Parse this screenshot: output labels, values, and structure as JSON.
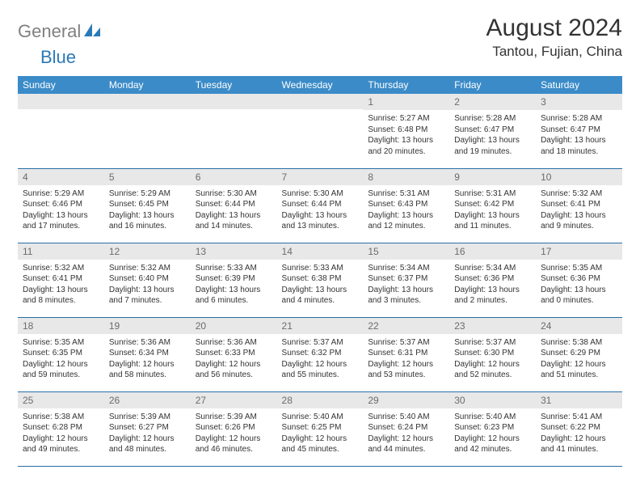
{
  "logo": {
    "grey": "General",
    "blue": "Blue"
  },
  "title": "August 2024",
  "location": "Tantou, Fujian, China",
  "colors": {
    "header_bg": "#3b8bc8",
    "header_text": "#ffffff",
    "daynum_bg": "#e8e8e8",
    "daynum_text": "#6b6b6b",
    "border": "#2a6fa5",
    "body_text": "#333333",
    "logo_grey": "#808080",
    "logo_blue": "#2a7ab8"
  },
  "day_labels": [
    "Sunday",
    "Monday",
    "Tuesday",
    "Wednesday",
    "Thursday",
    "Friday",
    "Saturday"
  ],
  "weeks": [
    [
      {
        "n": "",
        "sunrise": "",
        "sunset": "",
        "daylight": ""
      },
      {
        "n": "",
        "sunrise": "",
        "sunset": "",
        "daylight": ""
      },
      {
        "n": "",
        "sunrise": "",
        "sunset": "",
        "daylight": ""
      },
      {
        "n": "",
        "sunrise": "",
        "sunset": "",
        "daylight": ""
      },
      {
        "n": "1",
        "sunrise": "Sunrise: 5:27 AM",
        "sunset": "Sunset: 6:48 PM",
        "daylight": "Daylight: 13 hours and 20 minutes."
      },
      {
        "n": "2",
        "sunrise": "Sunrise: 5:28 AM",
        "sunset": "Sunset: 6:47 PM",
        "daylight": "Daylight: 13 hours and 19 minutes."
      },
      {
        "n": "3",
        "sunrise": "Sunrise: 5:28 AM",
        "sunset": "Sunset: 6:47 PM",
        "daylight": "Daylight: 13 hours and 18 minutes."
      }
    ],
    [
      {
        "n": "4",
        "sunrise": "Sunrise: 5:29 AM",
        "sunset": "Sunset: 6:46 PM",
        "daylight": "Daylight: 13 hours and 17 minutes."
      },
      {
        "n": "5",
        "sunrise": "Sunrise: 5:29 AM",
        "sunset": "Sunset: 6:45 PM",
        "daylight": "Daylight: 13 hours and 16 minutes."
      },
      {
        "n": "6",
        "sunrise": "Sunrise: 5:30 AM",
        "sunset": "Sunset: 6:44 PM",
        "daylight": "Daylight: 13 hours and 14 minutes."
      },
      {
        "n": "7",
        "sunrise": "Sunrise: 5:30 AM",
        "sunset": "Sunset: 6:44 PM",
        "daylight": "Daylight: 13 hours and 13 minutes."
      },
      {
        "n": "8",
        "sunrise": "Sunrise: 5:31 AM",
        "sunset": "Sunset: 6:43 PM",
        "daylight": "Daylight: 13 hours and 12 minutes."
      },
      {
        "n": "9",
        "sunrise": "Sunrise: 5:31 AM",
        "sunset": "Sunset: 6:42 PM",
        "daylight": "Daylight: 13 hours and 11 minutes."
      },
      {
        "n": "10",
        "sunrise": "Sunrise: 5:32 AM",
        "sunset": "Sunset: 6:41 PM",
        "daylight": "Daylight: 13 hours and 9 minutes."
      }
    ],
    [
      {
        "n": "11",
        "sunrise": "Sunrise: 5:32 AM",
        "sunset": "Sunset: 6:41 PM",
        "daylight": "Daylight: 13 hours and 8 minutes."
      },
      {
        "n": "12",
        "sunrise": "Sunrise: 5:32 AM",
        "sunset": "Sunset: 6:40 PM",
        "daylight": "Daylight: 13 hours and 7 minutes."
      },
      {
        "n": "13",
        "sunrise": "Sunrise: 5:33 AM",
        "sunset": "Sunset: 6:39 PM",
        "daylight": "Daylight: 13 hours and 6 minutes."
      },
      {
        "n": "14",
        "sunrise": "Sunrise: 5:33 AM",
        "sunset": "Sunset: 6:38 PM",
        "daylight": "Daylight: 13 hours and 4 minutes."
      },
      {
        "n": "15",
        "sunrise": "Sunrise: 5:34 AM",
        "sunset": "Sunset: 6:37 PM",
        "daylight": "Daylight: 13 hours and 3 minutes."
      },
      {
        "n": "16",
        "sunrise": "Sunrise: 5:34 AM",
        "sunset": "Sunset: 6:36 PM",
        "daylight": "Daylight: 13 hours and 2 minutes."
      },
      {
        "n": "17",
        "sunrise": "Sunrise: 5:35 AM",
        "sunset": "Sunset: 6:36 PM",
        "daylight": "Daylight: 13 hours and 0 minutes."
      }
    ],
    [
      {
        "n": "18",
        "sunrise": "Sunrise: 5:35 AM",
        "sunset": "Sunset: 6:35 PM",
        "daylight": "Daylight: 12 hours and 59 minutes."
      },
      {
        "n": "19",
        "sunrise": "Sunrise: 5:36 AM",
        "sunset": "Sunset: 6:34 PM",
        "daylight": "Daylight: 12 hours and 58 minutes."
      },
      {
        "n": "20",
        "sunrise": "Sunrise: 5:36 AM",
        "sunset": "Sunset: 6:33 PM",
        "daylight": "Daylight: 12 hours and 56 minutes."
      },
      {
        "n": "21",
        "sunrise": "Sunrise: 5:37 AM",
        "sunset": "Sunset: 6:32 PM",
        "daylight": "Daylight: 12 hours and 55 minutes."
      },
      {
        "n": "22",
        "sunrise": "Sunrise: 5:37 AM",
        "sunset": "Sunset: 6:31 PM",
        "daylight": "Daylight: 12 hours and 53 minutes."
      },
      {
        "n": "23",
        "sunrise": "Sunrise: 5:37 AM",
        "sunset": "Sunset: 6:30 PM",
        "daylight": "Daylight: 12 hours and 52 minutes."
      },
      {
        "n": "24",
        "sunrise": "Sunrise: 5:38 AM",
        "sunset": "Sunset: 6:29 PM",
        "daylight": "Daylight: 12 hours and 51 minutes."
      }
    ],
    [
      {
        "n": "25",
        "sunrise": "Sunrise: 5:38 AM",
        "sunset": "Sunset: 6:28 PM",
        "daylight": "Daylight: 12 hours and 49 minutes."
      },
      {
        "n": "26",
        "sunrise": "Sunrise: 5:39 AM",
        "sunset": "Sunset: 6:27 PM",
        "daylight": "Daylight: 12 hours and 48 minutes."
      },
      {
        "n": "27",
        "sunrise": "Sunrise: 5:39 AM",
        "sunset": "Sunset: 6:26 PM",
        "daylight": "Daylight: 12 hours and 46 minutes."
      },
      {
        "n": "28",
        "sunrise": "Sunrise: 5:40 AM",
        "sunset": "Sunset: 6:25 PM",
        "daylight": "Daylight: 12 hours and 45 minutes."
      },
      {
        "n": "29",
        "sunrise": "Sunrise: 5:40 AM",
        "sunset": "Sunset: 6:24 PM",
        "daylight": "Daylight: 12 hours and 44 minutes."
      },
      {
        "n": "30",
        "sunrise": "Sunrise: 5:40 AM",
        "sunset": "Sunset: 6:23 PM",
        "daylight": "Daylight: 12 hours and 42 minutes."
      },
      {
        "n": "31",
        "sunrise": "Sunrise: 5:41 AM",
        "sunset": "Sunset: 6:22 PM",
        "daylight": "Daylight: 12 hours and 41 minutes."
      }
    ]
  ]
}
